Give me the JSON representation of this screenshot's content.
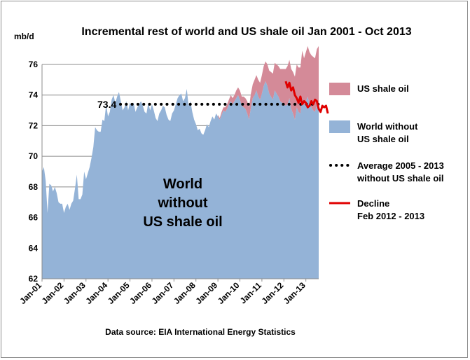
{
  "chart_data": {
    "type": "area",
    "title": "Incremental rest of world and US shale oil Jan 2001 - Oct 2013",
    "ylabel": "mb/d",
    "ylim": [
      62,
      76
    ],
    "yticks": [
      62,
      64,
      66,
      68,
      70,
      72,
      74,
      76
    ],
    "x_start": "Jan 2001",
    "x_end": "Oct 2013",
    "x_tick_labels": [
      "Jan-01",
      "Jan-02",
      "Jan-03",
      "Jan-04",
      "Jan-05",
      "Jan-06",
      "Jan-07",
      "Jan-08",
      "Jan-09",
      "Jan-10",
      "Jan-11",
      "Jan-12",
      "Jan-13"
    ],
    "grid": "horizontal",
    "legend_position": "right",
    "series": [
      {
        "name": "World without US shale oil",
        "color": "#94b3d7",
        "kind": "area",
        "values": [
          69.0,
          69.3,
          68.4,
          66.3,
          68.2,
          68.1,
          67.7,
          68.0,
          67.6,
          67.0,
          66.9,
          66.9,
          66.3,
          66.7,
          66.9,
          66.5,
          66.9,
          67.1,
          67.9,
          68.8,
          67.2,
          67.2,
          67.5,
          69.0,
          68.5,
          68.9,
          69.3,
          69.9,
          70.6,
          71.9,
          71.7,
          71.6,
          71.6,
          72.4,
          72.3,
          73.4,
          72.6,
          72.9,
          73.7,
          74.0,
          73.5,
          73.9,
          74.2,
          73.6,
          73.0,
          73.2,
          73.6,
          73.0,
          73.5,
          73.3,
          73.5,
          72.9,
          73.2,
          73.4,
          73.6,
          73.3,
          72.9,
          72.8,
          73.5,
          73.0,
          73.4,
          73.0,
          72.5,
          72.3,
          72.8,
          73.0,
          73.3,
          73.2,
          72.7,
          72.4,
          72.3,
          72.8,
          73.0,
          73.4,
          73.8,
          74.0,
          74.1,
          73.6,
          73.8,
          74.4,
          73.3,
          73.6,
          72.9,
          72.4,
          72.1,
          71.7,
          71.8,
          71.5,
          71.4,
          71.7,
          72.1,
          71.9,
          72.3,
          72.6,
          72.4,
          72.8,
          72.6,
          72.4,
          72.7,
          73.0,
          72.9,
          73.1,
          73.4,
          73.6,
          73.4,
          73.6,
          73.8,
          74.0,
          73.7,
          73.3,
          73.2,
          73.1,
          72.8,
          72.4,
          73.2,
          73.8,
          74.0,
          74.3,
          73.9,
          73.7,
          74.1,
          74.6,
          74.9,
          74.6,
          74.1,
          73.9,
          73.7,
          74.3,
          74.1,
          73.9,
          73.6,
          73.5,
          73.4,
          73.3,
          73.4,
          73.8,
          73.1,
          72.8,
          72.4,
          73.2,
          72.9,
          72.8,
          73.8,
          73.3,
          73.6,
          73.9,
          73.4,
          73.2,
          73.0,
          72.9,
          73.4,
          73.5
        ]
      },
      {
        "name": "US shale oil",
        "color": "#d48a98",
        "kind": "stacked-area",
        "start_index": 96,
        "values": [
          0.1,
          0.1,
          0.2,
          0.2,
          0.3,
          0.3,
          0.3,
          0.4,
          0.4,
          0.4,
          0.5,
          0.5,
          0.6,
          0.6,
          0.7,
          0.7,
          0.8,
          0.8,
          0.9,
          0.9,
          1.0,
          1.0,
          1.1,
          1.1,
          1.2,
          1.3,
          1.3,
          1.4,
          1.5,
          1.6,
          1.7,
          1.8,
          1.9,
          2.0,
          2.1,
          2.2,
          2.3,
          2.4,
          2.5,
          2.5,
          2.6,
          2.7,
          2.8,
          2.8,
          2.9,
          3.0,
          3.1,
          3.1,
          3.2,
          3.3,
          3.4,
          3.4,
          3.5,
          3.5,
          3.6,
          3.7,
          3.8,
          3.8,
          3.9,
          4.0,
          4.0,
          4.1
        ]
      },
      {
        "name": "Average 2005 - 2013 without US shale oil",
        "color": "#000000",
        "kind": "dotted-line",
        "value": 73.4,
        "label": "73.4"
      },
      {
        "name": "Decline Feb 2012 - 2013",
        "color": "#e00000",
        "kind": "line",
        "start_index": 133,
        "values": [
          74.9,
          74.5,
          74.8,
          74.3,
          74.5,
          74.0,
          73.8,
          73.5,
          73.9,
          73.4,
          73.6,
          73.5,
          73.2,
          73.3,
          73.6,
          73.4,
          73.7,
          73.6,
          73.1,
          72.9,
          73.3,
          73.2,
          73.3,
          72.8
        ]
      }
    ],
    "annotations": [
      "World",
      "without",
      "US shale oil"
    ],
    "source": "Data source: EIA International Energy Statistics"
  },
  "legend": [
    {
      "label_lines": [
        "US shale oil"
      ],
      "swatch": "area",
      "color": "#d48a98"
    },
    {
      "label_lines": [
        "World without",
        "US shale oil"
      ],
      "swatch": "area",
      "color": "#94b3d7"
    },
    {
      "label_lines": [
        "Average 2005 - 2013",
        "without US shale oil"
      ],
      "swatch": "dots",
      "color": "#000000"
    },
    {
      "label_lines": [
        "Decline",
        "Feb 2012 - 2013"
      ],
      "swatch": "line",
      "color": "#e00000"
    }
  ]
}
